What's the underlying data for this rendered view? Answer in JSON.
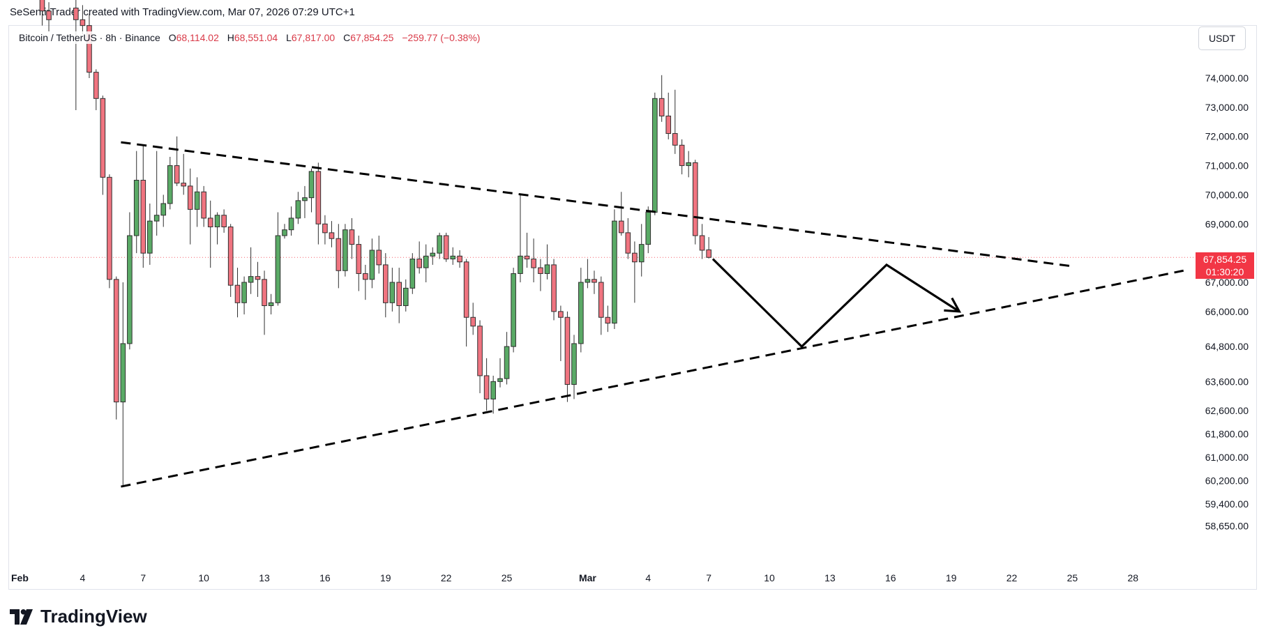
{
  "header": {
    "credit": "SeSentirTrader created with TradingView.com, Mar 07, 2026 07:29 UTC+1"
  },
  "legend": {
    "symbol": "Bitcoin / TetherUS · 8h · Binance",
    "open_label": "O",
    "open": "68,114.02",
    "high_label": "H",
    "high": "68,551.04",
    "low_label": "L",
    "low": "67,817.00",
    "close_label": "C",
    "close": "67,854.25",
    "change": "−259.77 (−0.38%)"
  },
  "currency_button": "USDT",
  "price_badge": {
    "price": "67,854.25",
    "countdown": "01:30:20"
  },
  "brand": {
    "name": "TradingView"
  },
  "colors": {
    "up": "#5aaa66",
    "down": "#f07480",
    "badge": "#f23645",
    "drawing": "#000000"
  },
  "chart_data": {
    "type": "candlestick",
    "symbol": "BTCUSDT",
    "interval": "8h",
    "y_axis_ticks": [
      {
        "value": 74000,
        "label": "74,000.00"
      },
      {
        "value": 73000,
        "label": "73,000.00"
      },
      {
        "value": 72000,
        "label": "72,000.00"
      },
      {
        "value": 71000,
        "label": "71,000.00"
      },
      {
        "value": 70000,
        "label": "70,000.00"
      },
      {
        "value": 69000,
        "label": "69,000.00"
      },
      {
        "value": 67000,
        "label": "67,000.00"
      },
      {
        "value": 66000,
        "label": "66,000.00"
      },
      {
        "value": 64800,
        "label": "64,800.00"
      },
      {
        "value": 63600,
        "label": "63,600.00"
      },
      {
        "value": 62600,
        "label": "62,600.00"
      },
      {
        "value": 61800,
        "label": "61,800.00"
      },
      {
        "value": 61000,
        "label": "61,000.00"
      },
      {
        "value": 60200,
        "label": "60,200.00"
      },
      {
        "value": 59400,
        "label": "59,400.00"
      },
      {
        "value": 58650,
        "label": "58,650.00"
      }
    ],
    "x_axis_ticks": [
      {
        "day": 1,
        "label": "Feb"
      },
      {
        "day": 4,
        "label": "4"
      },
      {
        "day": 7,
        "label": "7"
      },
      {
        "day": 10,
        "label": "10"
      },
      {
        "day": 13,
        "label": "13"
      },
      {
        "day": 16,
        "label": "16"
      },
      {
        "day": 19,
        "label": "19"
      },
      {
        "day": 22,
        "label": "22"
      },
      {
        "day": 25,
        "label": "25"
      },
      {
        "day": 29,
        "label": "Mar"
      },
      {
        "day": 32,
        "label": "4"
      },
      {
        "day": 35,
        "label": "7"
      },
      {
        "day": 38,
        "label": "10"
      },
      {
        "day": 41,
        "label": "13"
      },
      {
        "day": 44,
        "label": "16"
      },
      {
        "day": 47,
        "label": "19"
      },
      {
        "day": 50,
        "label": "22"
      },
      {
        "day": 53,
        "label": "25"
      },
      {
        "day": 56,
        "label": "28"
      }
    ],
    "last_price": 67854.25,
    "candles": [
      {
        "t": 2.0,
        "o": 76800,
        "h": 77200,
        "l": 75800,
        "c": 76300
      },
      {
        "t": 2.33,
        "o": 76300,
        "h": 76600,
        "l": 75600,
        "c": 76000
      },
      {
        "t": 3.67,
        "o": 76400,
        "h": 76900,
        "l": 72900,
        "c": 76000
      },
      {
        "t": 4.0,
        "o": 76000,
        "h": 76500,
        "l": 75500,
        "c": 75800
      },
      {
        "t": 4.33,
        "o": 75800,
        "h": 76200,
        "l": 74000,
        "c": 74200
      },
      {
        "t": 4.67,
        "o": 74200,
        "h": 74300,
        "l": 72900,
        "c": 73300
      },
      {
        "t": 5.0,
        "o": 73300,
        "h": 73400,
        "l": 70000,
        "c": 70600
      },
      {
        "t": 5.33,
        "o": 70600,
        "h": 70700,
        "l": 66800,
        "c": 67100
      },
      {
        "t": 5.67,
        "o": 67100,
        "h": 67200,
        "l": 62300,
        "c": 62900
      },
      {
        "t": 6.0,
        "o": 62900,
        "h": 67000,
        "l": 60000,
        "c": 64900
      },
      {
        "t": 6.33,
        "o": 64900,
        "h": 69400,
        "l": 64700,
        "c": 68600
      },
      {
        "t": 6.67,
        "o": 68600,
        "h": 71500,
        "l": 68000,
        "c": 70500
      },
      {
        "t": 7.0,
        "o": 70500,
        "h": 71700,
        "l": 67500,
        "c": 68000
      },
      {
        "t": 7.33,
        "o": 68000,
        "h": 69700,
        "l": 67600,
        "c": 69100
      },
      {
        "t": 7.67,
        "o": 69100,
        "h": 71500,
        "l": 68600,
        "c": 69300
      },
      {
        "t": 8.0,
        "o": 69300,
        "h": 70000,
        "l": 68900,
        "c": 69700
      },
      {
        "t": 8.33,
        "o": 69700,
        "h": 71300,
        "l": 69500,
        "c": 71000
      },
      {
        "t": 8.67,
        "o": 71000,
        "h": 72000,
        "l": 70300,
        "c": 70400
      },
      {
        "t": 9.0,
        "o": 70400,
        "h": 71400,
        "l": 70000,
        "c": 70300
      },
      {
        "t": 9.33,
        "o": 70300,
        "h": 70900,
        "l": 68300,
        "c": 69500
      },
      {
        "t": 9.67,
        "o": 69500,
        "h": 70600,
        "l": 68900,
        "c": 70100
      },
      {
        "t": 10.0,
        "o": 70100,
        "h": 70300,
        "l": 68900,
        "c": 69200
      },
      {
        "t": 10.33,
        "o": 69200,
        "h": 69800,
        "l": 67500,
        "c": 68900
      },
      {
        "t": 10.67,
        "o": 68900,
        "h": 69400,
        "l": 68300,
        "c": 69300
      },
      {
        "t": 11.0,
        "o": 69300,
        "h": 69500,
        "l": 68700,
        "c": 68900
      },
      {
        "t": 11.33,
        "o": 68900,
        "h": 69000,
        "l": 66500,
        "c": 66900
      },
      {
        "t": 11.67,
        "o": 66900,
        "h": 67500,
        "l": 65800,
        "c": 66300
      },
      {
        "t": 12.0,
        "o": 66300,
        "h": 67200,
        "l": 65900,
        "c": 67000
      },
      {
        "t": 12.33,
        "o": 67000,
        "h": 68200,
        "l": 66600,
        "c": 67200
      },
      {
        "t": 12.67,
        "o": 67200,
        "h": 67700,
        "l": 66500,
        "c": 67100
      },
      {
        "t": 13.0,
        "o": 67100,
        "h": 67400,
        "l": 65200,
        "c": 66200
      },
      {
        "t": 13.33,
        "o": 66200,
        "h": 66600,
        "l": 65900,
        "c": 66300
      },
      {
        "t": 13.67,
        "o": 66300,
        "h": 69400,
        "l": 66200,
        "c": 68600
      },
      {
        "t": 14.0,
        "o": 68600,
        "h": 69000,
        "l": 68500,
        "c": 68800
      },
      {
        "t": 14.33,
        "o": 68800,
        "h": 69600,
        "l": 68600,
        "c": 69200
      },
      {
        "t": 14.67,
        "o": 69200,
        "h": 70100,
        "l": 69000,
        "c": 69800
      },
      {
        "t": 15.0,
        "o": 69800,
        "h": 70300,
        "l": 69200,
        "c": 69900
      },
      {
        "t": 15.33,
        "o": 69900,
        "h": 70900,
        "l": 69400,
        "c": 70800
      },
      {
        "t": 15.67,
        "o": 70800,
        "h": 71100,
        "l": 68300,
        "c": 69000
      },
      {
        "t": 16.0,
        "o": 69000,
        "h": 69300,
        "l": 68300,
        "c": 68700
      },
      {
        "t": 16.33,
        "o": 68700,
        "h": 69100,
        "l": 68200,
        "c": 68500
      },
      {
        "t": 16.67,
        "o": 68500,
        "h": 69000,
        "l": 66800,
        "c": 67400
      },
      {
        "t": 17.0,
        "o": 67400,
        "h": 69000,
        "l": 67200,
        "c": 68800
      },
      {
        "t": 17.33,
        "o": 68800,
        "h": 69200,
        "l": 67800,
        "c": 68300
      },
      {
        "t": 17.67,
        "o": 68300,
        "h": 68600,
        "l": 66700,
        "c": 67300
      },
      {
        "t": 18.0,
        "o": 67300,
        "h": 67600,
        "l": 66400,
        "c": 67100
      },
      {
        "t": 18.33,
        "o": 67100,
        "h": 68500,
        "l": 66800,
        "c": 68100
      },
      {
        "t": 18.67,
        "o": 68100,
        "h": 68600,
        "l": 67300,
        "c": 67600
      },
      {
        "t": 19.0,
        "o": 67600,
        "h": 68000,
        "l": 65800,
        "c": 66300
      },
      {
        "t": 19.33,
        "o": 66300,
        "h": 67500,
        "l": 66000,
        "c": 67000
      },
      {
        "t": 19.67,
        "o": 67000,
        "h": 67500,
        "l": 65600,
        "c": 66200
      },
      {
        "t": 20.0,
        "o": 66200,
        "h": 67100,
        "l": 66000,
        "c": 66800
      },
      {
        "t": 20.33,
        "o": 66800,
        "h": 68000,
        "l": 66600,
        "c": 67800
      },
      {
        "t": 20.67,
        "o": 67800,
        "h": 68400,
        "l": 67300,
        "c": 67500
      },
      {
        "t": 21.0,
        "o": 67500,
        "h": 68300,
        "l": 67000,
        "c": 67900
      },
      {
        "t": 21.33,
        "o": 67900,
        "h": 68200,
        "l": 67600,
        "c": 68000
      },
      {
        "t": 21.67,
        "o": 68000,
        "h": 68700,
        "l": 67800,
        "c": 68600
      },
      {
        "t": 22.0,
        "o": 68600,
        "h": 68700,
        "l": 67700,
        "c": 67800
      },
      {
        "t": 22.33,
        "o": 67800,
        "h": 68200,
        "l": 67600,
        "c": 67900
      },
      {
        "t": 22.67,
        "o": 67900,
        "h": 68100,
        "l": 67500,
        "c": 67700
      },
      {
        "t": 23.0,
        "o": 67700,
        "h": 67800,
        "l": 64800,
        "c": 65800
      },
      {
        "t": 23.33,
        "o": 65800,
        "h": 66300,
        "l": 65200,
        "c": 65500
      },
      {
        "t": 23.67,
        "o": 65500,
        "h": 65700,
        "l": 63200,
        "c": 63800
      },
      {
        "t": 24.0,
        "o": 63800,
        "h": 64400,
        "l": 62600,
        "c": 63000
      },
      {
        "t": 24.33,
        "o": 63000,
        "h": 63800,
        "l": 62500,
        "c": 63600
      },
      {
        "t": 24.67,
        "o": 63600,
        "h": 64400,
        "l": 63400,
        "c": 63700
      },
      {
        "t": 25.0,
        "o": 63700,
        "h": 65300,
        "l": 63500,
        "c": 64800
      },
      {
        "t": 25.33,
        "o": 64800,
        "h": 67500,
        "l": 64600,
        "c": 67300
      },
      {
        "t": 25.67,
        "o": 67300,
        "h": 70000,
        "l": 67000,
        "c": 67900
      },
      {
        "t": 26.0,
        "o": 67900,
        "h": 68700,
        "l": 67500,
        "c": 67800
      },
      {
        "t": 26.33,
        "o": 67800,
        "h": 68500,
        "l": 67000,
        "c": 67500
      },
      {
        "t": 26.67,
        "o": 67500,
        "h": 67800,
        "l": 66700,
        "c": 67300
      },
      {
        "t": 27.0,
        "o": 67300,
        "h": 68300,
        "l": 67100,
        "c": 67600
      },
      {
        "t": 27.33,
        "o": 67600,
        "h": 67800,
        "l": 65700,
        "c": 66000
      },
      {
        "t": 27.67,
        "o": 66000,
        "h": 66200,
        "l": 64300,
        "c": 65800
      },
      {
        "t": 28.0,
        "o": 65800,
        "h": 66000,
        "l": 62900,
        "c": 63500
      },
      {
        "t": 28.33,
        "o": 63500,
        "h": 65200,
        "l": 63000,
        "c": 64900
      },
      {
        "t": 28.67,
        "o": 64900,
        "h": 67500,
        "l": 64600,
        "c": 67000
      },
      {
        "t": 29.0,
        "o": 67000,
        "h": 67800,
        "l": 66800,
        "c": 67100
      },
      {
        "t": 29.33,
        "o": 67100,
        "h": 67400,
        "l": 66600,
        "c": 67000
      },
      {
        "t": 29.67,
        "o": 67000,
        "h": 67200,
        "l": 65200,
        "c": 65800
      },
      {
        "t": 30.0,
        "o": 65800,
        "h": 66200,
        "l": 65300,
        "c": 65600
      },
      {
        "t": 30.33,
        "o": 65600,
        "h": 69500,
        "l": 65400,
        "c": 69100
      },
      {
        "t": 30.67,
        "o": 69100,
        "h": 70100,
        "l": 68600,
        "c": 68700
      },
      {
        "t": 31.0,
        "o": 68700,
        "h": 69200,
        "l": 67800,
        "c": 68000
      },
      {
        "t": 31.33,
        "o": 68000,
        "h": 68400,
        "l": 66300,
        "c": 67700
      },
      {
        "t": 31.67,
        "o": 67700,
        "h": 69000,
        "l": 67200,
        "c": 68300
      },
      {
        "t": 32.0,
        "o": 68300,
        "h": 69600,
        "l": 68000,
        "c": 69400
      },
      {
        "t": 32.33,
        "o": 69400,
        "h": 73500,
        "l": 69300,
        "c": 73300
      },
      {
        "t": 32.67,
        "o": 73300,
        "h": 74100,
        "l": 72500,
        "c": 72700
      },
      {
        "t": 33.0,
        "o": 72700,
        "h": 73500,
        "l": 71900,
        "c": 72100
      },
      {
        "t": 33.33,
        "o": 72100,
        "h": 73600,
        "l": 71400,
        "c": 71700
      },
      {
        "t": 33.67,
        "o": 71700,
        "h": 71900,
        "l": 70700,
        "c": 71000
      },
      {
        "t": 34.0,
        "o": 71000,
        "h": 71500,
        "l": 70600,
        "c": 71100
      },
      {
        "t": 34.33,
        "o": 71100,
        "h": 71200,
        "l": 68300,
        "c": 68600
      },
      {
        "t": 34.67,
        "o": 68600,
        "h": 69000,
        "l": 67800,
        "c": 68100
      },
      {
        "t": 35.0,
        "o": 68114.02,
        "h": 68551.04,
        "l": 67817.0,
        "c": 67854.25
      }
    ],
    "drawings": [
      {
        "type": "trendline",
        "style": "dashed",
        "points": [
          {
            "t": 5.9,
            "p": 71800
          },
          {
            "t": 53.0,
            "p": 67550
          }
        ]
      },
      {
        "t_note": "",
        "type": "trendline",
        "style": "dashed",
        "points": [
          {
            "t": 5.9,
            "p": 60000
          },
          {
            "t": 58.5,
            "p": 67400
          }
        ]
      },
      {
        "type": "polyline_arrow",
        "style": "solid",
        "points": [
          {
            "t": 35.2,
            "p": 67800
          },
          {
            "t": 39.6,
            "p": 64800
          },
          {
            "t": 43.8,
            "p": 67600
          },
          {
            "t": 47.4,
            "p": 66000
          }
        ]
      }
    ]
  }
}
